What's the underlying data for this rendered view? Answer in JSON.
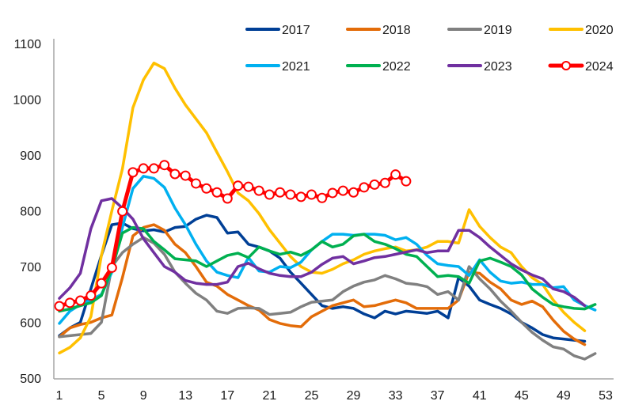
{
  "chart_data": {
    "type": "line",
    "title": "",
    "xlabel": "",
    "ylabel": "",
    "xlim": [
      1,
      53
    ],
    "ylim": [
      500,
      1100
    ],
    "x_ticks": [
      1,
      5,
      9,
      13,
      17,
      21,
      25,
      29,
      33,
      37,
      41,
      45,
      49,
      53
    ],
    "y_ticks": [
      500,
      600,
      700,
      800,
      900,
      1000,
      1100
    ],
    "grid": false,
    "legend_position": "top-right",
    "series": [
      {
        "name": "2017",
        "color": "#003f96",
        "marker": false,
        "values": [
          576,
          590,
          600,
          660,
          720,
          775,
          778,
          768,
          764,
          766,
          762,
          770,
          772,
          785,
          792,
          788,
          760,
          762,
          740,
          735,
          728,
          715,
          690,
          670,
          650,
          630,
          625,
          628,
          625,
          615,
          608,
          620,
          615,
          620,
          618,
          616,
          620,
          608,
          680,
          665,
          640,
          632,
          625,
          615,
          600,
          590,
          578,
          572,
          570,
          568,
          566
        ]
      },
      {
        "name": "2018",
        "color": "#e36c09",
        "marker": false,
        "values": [
          574,
          590,
          596,
          600,
          608,
          613,
          680,
          755,
          770,
          775,
          765,
          740,
          725,
          700,
          672,
          665,
          650,
          640,
          630,
          622,
          605,
          598,
          594,
          592,
          610,
          620,
          630,
          635,
          640,
          628,
          630,
          635,
          640,
          635,
          625,
          625,
          625,
          625,
          640,
          690,
          688,
          672,
          660,
          640,
          632,
          638,
          628,
          604,
          584,
          570,
          560
        ]
      },
      {
        "name": "2019",
        "color": "#808080",
        "marker": false,
        "values": [
          574,
          576,
          578,
          580,
          600,
          700,
          725,
          740,
          752,
          742,
          722,
          690,
          670,
          652,
          640,
          620,
          616,
          625,
          626,
          625,
          614,
          616,
          618,
          628,
          636,
          638,
          640,
          655,
          665,
          672,
          676,
          684,
          678,
          670,
          668,
          664,
          650,
          655,
          640,
          700,
          678,
          660,
          638,
          620,
          600,
          582,
          568,
          556,
          552,
          540,
          534,
          544
        ]
      },
      {
        "name": "2020",
        "color": "#ffc000",
        "marker": false,
        "values": [
          545,
          555,
          572,
          610,
          720,
          800,
          875,
          985,
          1035,
          1065,
          1055,
          1020,
          990,
          965,
          940,
          905,
          870,
          832,
          818,
          795,
          766,
          742,
          718,
          700,
          690,
          688,
          695,
          705,
          712,
          722,
          728,
          732,
          735,
          728,
          730,
          735,
          745,
          745,
          742,
          802,
          772,
          752,
          735,
          725,
          700,
          680,
          668,
          640,
          618,
          600,
          585
        ]
      },
      {
        "name": "2021",
        "color": "#00b0f0",
        "marker": false,
        "values": [
          598,
          620,
          632,
          640,
          650,
          690,
          770,
          840,
          862,
          858,
          842,
          805,
          775,
          740,
          710,
          690,
          684,
          680,
          716,
          692,
          690,
          700,
          698,
          708,
          730,
          745,
          758,
          758,
          756,
          758,
          758,
          756,
          748,
          752,
          740,
          720,
          705,
          702,
          700,
          684,
          712,
          690,
          674,
          670,
          672,
          668,
          668,
          662,
          664,
          640,
          630,
          622
        ]
      },
      {
        "name": "2022",
        "color": "#00b050",
        "marker": false,
        "values": [
          620,
          624,
          630,
          635,
          648,
          695,
          760,
          770,
          768,
          745,
          730,
          714,
          712,
          710,
          700,
          710,
          720,
          724,
          716,
          735,
          728,
          722,
          726,
          720,
          730,
          745,
          735,
          740,
          755,
          758,
          745,
          740,
          732,
          722,
          718,
          700,
          682,
          684,
          682,
          670,
          710,
          715,
          708,
          700,
          685,
          660,
          645,
          632,
          628,
          625,
          624,
          632
        ]
      },
      {
        "name": "2023",
        "color": "#7030a0",
        "marker": false,
        "values": [
          643,
          662,
          688,
          768,
          818,
          822,
          805,
          785,
          750,
          725,
          700,
          690,
          675,
          670,
          668,
          668,
          672,
          700,
          706,
          696,
          688,
          684,
          682,
          682,
          690,
          704,
          715,
          718,
          705,
          710,
          716,
          718,
          722,
          726,
          730,
          725,
          728,
          728,
          765,
          765,
          752,
          735,
          720,
          705,
          694,
          685,
          678,
          660,
          655,
          645,
          630
        ]
      },
      {
        "name": "2024",
        "color": "#ff0000",
        "marker": true,
        "values": [
          629,
          635,
          639,
          648,
          670,
          698,
          799,
          869,
          876,
          876,
          882,
          866,
          863,
          849,
          840,
          833,
          822,
          845,
          843,
          836,
          829,
          833,
          829,
          825,
          829,
          823,
          832,
          836,
          833,
          842,
          847,
          850,
          865,
          853
        ]
      }
    ]
  }
}
